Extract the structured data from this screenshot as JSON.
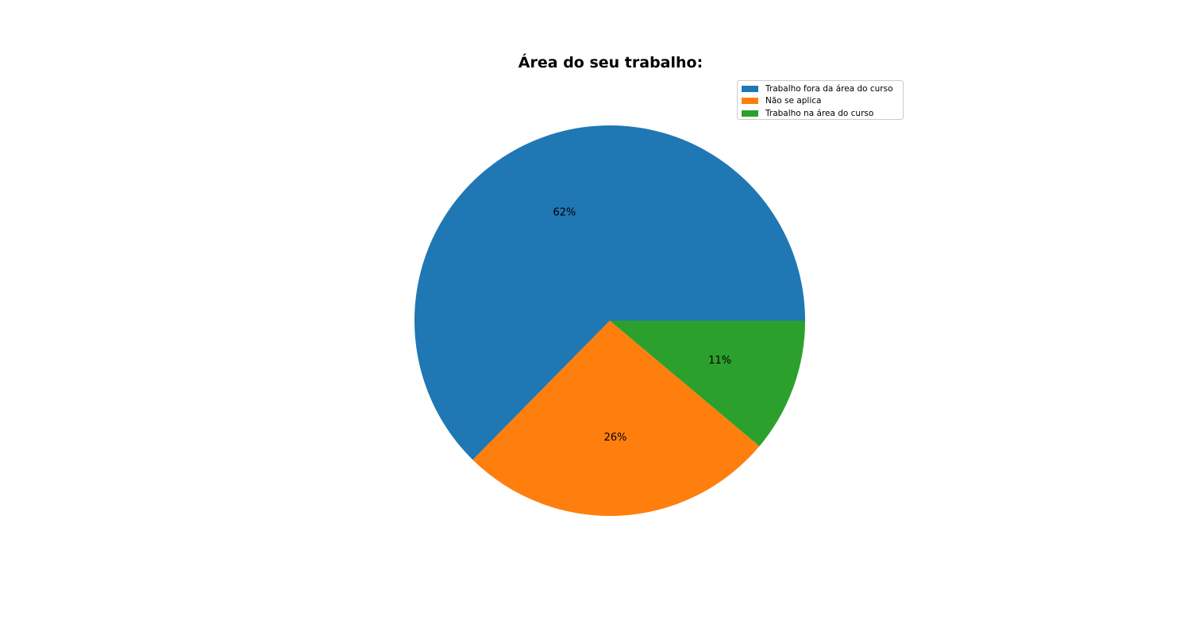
{
  "chart_data": {
    "type": "pie",
    "title": "Área do seu trabalho:",
    "slices": [
      {
        "label": "Trabalho fora da área do curso",
        "value": 62,
        "pct_label": "62%",
        "color": "#1f77b4"
      },
      {
        "label": "Não se aplica",
        "value": 26,
        "pct_label": "26%",
        "color": "#ff7f0e"
      },
      {
        "label": "Trabalho na área do curso",
        "value": 11,
        "pct_label": "11%",
        "color": "#2ca02c"
      }
    ],
    "start_angle_deg": 0,
    "direction": "counterclockwise",
    "legend_position": "upper-right"
  }
}
